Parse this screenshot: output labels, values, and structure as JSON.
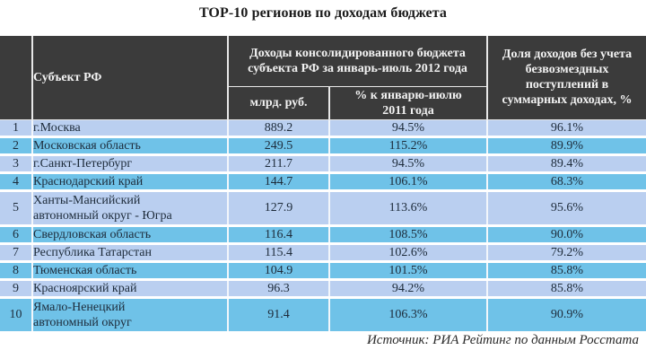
{
  "title": "TOP-10 регионов по доходам бюджета",
  "header": {
    "subject": "Субъект РФ",
    "revenue_group": "Доходы консолидированного бюджета субъекта РФ за январь-июль 2012 года",
    "revenue_bln": "млрд. руб.",
    "revenue_pct": "% к январю-июлю 2011 года",
    "share": "Доля доходов без учета безвозмездных поступлений в суммарных доходах, %"
  },
  "rows": [
    {
      "rank": "1",
      "subject": "г.Москва",
      "revenue_bln": "889.2",
      "revenue_pct": "94.5%",
      "share": "96.1%"
    },
    {
      "rank": "2",
      "subject": "Московская область",
      "revenue_bln": "249.5",
      "revenue_pct": "115.2%",
      "share": "89.9%"
    },
    {
      "rank": "3",
      "subject": "г.Санкт-Петербург",
      "revenue_bln": "211.7",
      "revenue_pct": "94.5%",
      "share": "89.4%"
    },
    {
      "rank": "4",
      "subject": "Краснодарский край",
      "revenue_bln": "144.7",
      "revenue_pct": "106.1%",
      "share": "68.3%"
    },
    {
      "rank": "5",
      "subject": "Ханты-Мансийский автономный округ - Югра",
      "revenue_bln": "127.9",
      "revenue_pct": "113.6%",
      "share": "95.6%"
    },
    {
      "rank": "6",
      "subject": "Свердловская область",
      "revenue_bln": "116.4",
      "revenue_pct": "108.5%",
      "share": "90.0%"
    },
    {
      "rank": "7",
      "subject": "Республика Татарстан",
      "revenue_bln": "115.4",
      "revenue_pct": "102.6%",
      "share": "79.2%"
    },
    {
      "rank": "8",
      "subject": "Тюменская область",
      "revenue_bln": "104.9",
      "revenue_pct": "101.5%",
      "share": "85.8%"
    },
    {
      "rank": "9",
      "subject": "Красноярский край",
      "revenue_bln": "96.3",
      "revenue_pct": "94.2%",
      "share": "85.8%"
    },
    {
      "rank": "10",
      "subject": "Ямало-Ненецкий автономный округ",
      "revenue_bln": "91.4",
      "revenue_pct": "106.3%",
      "share": "90.9%"
    }
  ],
  "source": "Источник: РИА Рейтинг по данным Росстата",
  "colors": {
    "header_bg": "#3b3b3b",
    "row_light": "#bacff0",
    "row_dark": "#6fc2e8"
  }
}
